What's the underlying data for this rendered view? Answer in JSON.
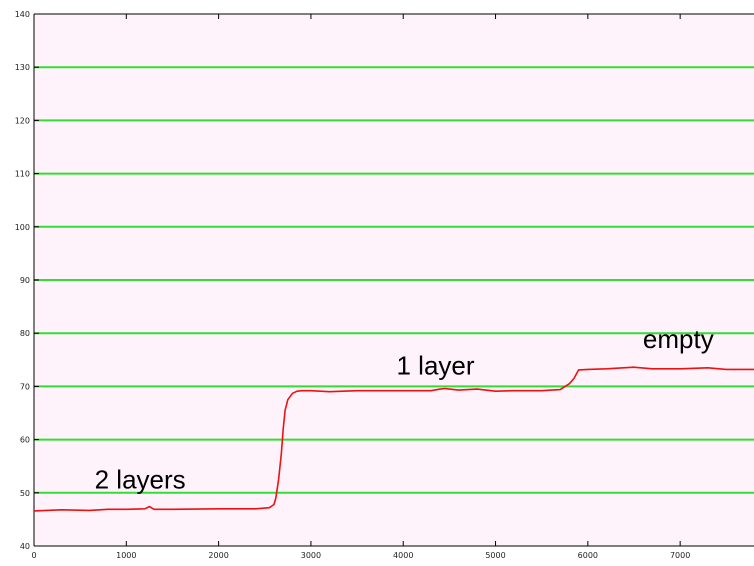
{
  "chart_data": {
    "type": "line",
    "title": "",
    "xlabel": "",
    "ylabel": "",
    "xlim": [
      0,
      7800
    ],
    "ylim": [
      40,
      140
    ],
    "x_ticks": [
      0,
      1000,
      2000,
      3000,
      4000,
      5000,
      6000,
      7000
    ],
    "y_ticks": [
      40,
      50,
      60,
      70,
      80,
      90,
      100,
      110,
      120,
      130,
      140
    ],
    "grid": "horizontal",
    "colors": {
      "plot_background": "#fff3fb",
      "grid": "#33dd33",
      "line": "#ee1111",
      "axes": "#000000"
    },
    "series": [
      {
        "x": [
          0,
          300,
          600,
          800,
          1000,
          1200,
          1250,
          1300,
          1500,
          2000,
          2400,
          2550,
          2600,
          2620,
          2650,
          2680,
          2700,
          2720,
          2750,
          2800,
          2850,
          2900,
          3000,
          3200,
          3500,
          4000,
          4300,
          4400,
          4450,
          4500,
          4600,
          4800,
          5000,
          5200,
          5500,
          5700,
          5800,
          5850,
          5900,
          6000,
          6200,
          6500,
          6700,
          7000,
          7300,
          7500,
          7800
        ],
        "y": [
          46.6,
          46.8,
          46.7,
          46.9,
          46.9,
          47.0,
          47.4,
          46.9,
          46.9,
          47.0,
          47.0,
          47.2,
          47.8,
          49.0,
          52.5,
          57.5,
          62.0,
          65.5,
          67.5,
          68.7,
          69.1,
          69.2,
          69.2,
          69.0,
          69.2,
          69.2,
          69.2,
          69.5,
          69.6,
          69.5,
          69.3,
          69.5,
          69.1,
          69.2,
          69.2,
          69.4,
          70.5,
          71.5,
          73.1,
          73.2,
          73.3,
          73.6,
          73.3,
          73.3,
          73.5,
          73.2,
          73.2
        ]
      }
    ],
    "annotations": [
      {
        "text": "2 layers",
        "x": 1150,
        "y": 50.8
      },
      {
        "text": "1 layer",
        "x": 4350,
        "y": 72.2
      },
      {
        "text": "empty",
        "x": 6980,
        "y": 77.2
      }
    ]
  }
}
